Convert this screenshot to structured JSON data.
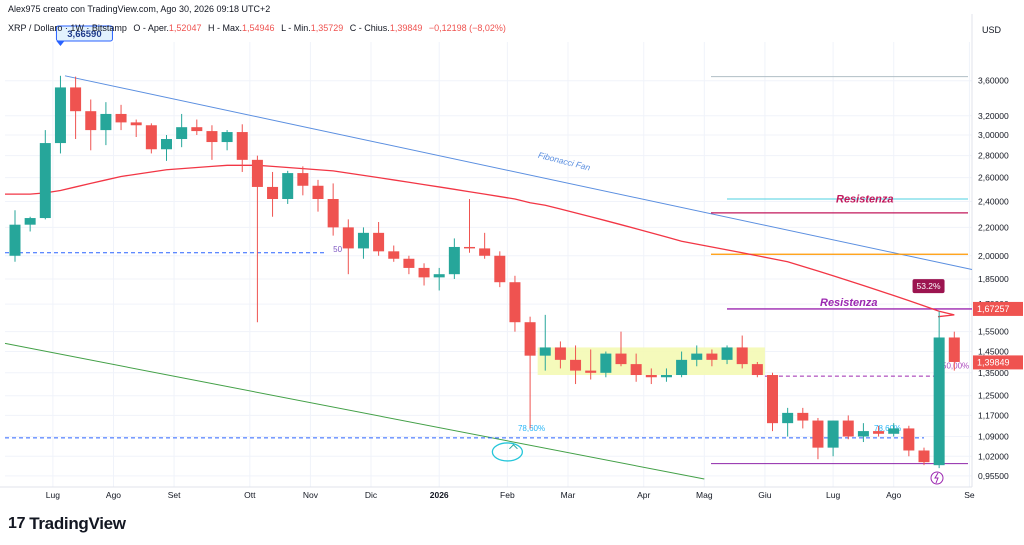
{
  "header": {
    "creator": "Alex975 creato con TradingView.com, Ago 30, 2026 09:18 UTC+2",
    "symbol_line": "XRP / Dollaro · 1W · Bitstamp",
    "ohlc": {
      "open_label": "O - Aper.",
      "open": "1,52047",
      "high_label": "H - Max.",
      "high": "1,54946",
      "low_label": "L - Min.",
      "low": "1,35729",
      "close_label": "C - Chius.",
      "close": "1,39849",
      "change": "−0,12198 (−8,02%)"
    },
    "currency": "USD"
  },
  "brand": {
    "name": "TradingView",
    "logo": "17"
  },
  "colors": {
    "up": "#26a69a",
    "down": "#ef5350",
    "ma": "#f23645",
    "fan_blue": "#5b8fe0",
    "fan_green": "#43a047",
    "dashed_blue": "#2962ff",
    "resist_red": "#c2185b",
    "resist_purple": "#9c27b0",
    "orange": "#ff9800",
    "zone": "#f4f9b4",
    "cyan": "#4dd0e1",
    "grid": "#f0f3fa"
  },
  "chart_data": {
    "type": "candlestick",
    "timeframe": "1W",
    "x_tick_labels": [
      "Lug",
      "Ago",
      "Set",
      "Ott",
      "Nov",
      "Dic",
      "2026",
      "Feb",
      "Mar",
      "Apr",
      "Mag",
      "Giu",
      "Lug",
      "Ago",
      "Se"
    ],
    "y_tick_labels": [
      "3,60000",
      "3,20000",
      "3,00000",
      "2,80000",
      "2,60000",
      "2,40000",
      "2,20000",
      "2,00000",
      "1,85000",
      "1,70000",
      "1,55000",
      "1,45000",
      "1,35000",
      "1,25000",
      "1,17000",
      "1,09000",
      "1,02000",
      "0,95500"
    ],
    "y_scale": "log",
    "y_range": [
      0.92,
      4.1
    ],
    "candles": [
      {
        "o": 2.0,
        "h": 2.33,
        "l": 1.96,
        "c": 2.22
      },
      {
        "o": 2.22,
        "h": 2.28,
        "l": 2.17,
        "c": 2.27
      },
      {
        "o": 2.27,
        "h": 3.05,
        "l": 2.26,
        "c": 2.92
      },
      {
        "o": 2.92,
        "h": 3.66,
        "l": 2.82,
        "c": 3.52
      },
      {
        "o": 3.52,
        "h": 3.65,
        "l": 2.96,
        "c": 3.25
      },
      {
        "o": 3.25,
        "h": 3.38,
        "l": 2.85,
        "c": 3.05
      },
      {
        "o": 3.05,
        "h": 3.35,
        "l": 2.9,
        "c": 3.22
      },
      {
        "o": 3.22,
        "h": 3.32,
        "l": 3.05,
        "c": 3.13
      },
      {
        "o": 3.13,
        "h": 3.16,
        "l": 2.98,
        "c": 3.1
      },
      {
        "o": 3.1,
        "h": 3.12,
        "l": 2.82,
        "c": 2.86
      },
      {
        "o": 2.86,
        "h": 3.0,
        "l": 2.75,
        "c": 2.96
      },
      {
        "o": 2.96,
        "h": 3.22,
        "l": 2.88,
        "c": 3.08
      },
      {
        "o": 3.08,
        "h": 3.16,
        "l": 3.0,
        "c": 3.04
      },
      {
        "o": 3.04,
        "h": 3.1,
        "l": 2.76,
        "c": 2.93
      },
      {
        "o": 2.93,
        "h": 3.05,
        "l": 2.85,
        "c": 3.03
      },
      {
        "o": 3.03,
        "h": 3.11,
        "l": 2.65,
        "c": 2.76
      },
      {
        "o": 2.76,
        "h": 2.8,
        "l": 1.6,
        "c": 2.52
      },
      {
        "o": 2.52,
        "h": 2.65,
        "l": 2.28,
        "c": 2.42
      },
      {
        "o": 2.42,
        "h": 2.66,
        "l": 2.38,
        "c": 2.64
      },
      {
        "o": 2.64,
        "h": 2.7,
        "l": 2.45,
        "c": 2.53
      },
      {
        "o": 2.53,
        "h": 2.58,
        "l": 2.32,
        "c": 2.42
      },
      {
        "o": 2.42,
        "h": 2.55,
        "l": 2.14,
        "c": 2.2
      },
      {
        "o": 2.2,
        "h": 2.26,
        "l": 1.88,
        "c": 2.05
      },
      {
        "o": 2.05,
        "h": 2.2,
        "l": 1.98,
        "c": 2.16
      },
      {
        "o": 2.16,
        "h": 2.24,
        "l": 2.0,
        "c": 2.03
      },
      {
        "o": 2.03,
        "h": 2.07,
        "l": 1.96,
        "c": 1.98
      },
      {
        "o": 1.98,
        "h": 2.0,
        "l": 1.88,
        "c": 1.92
      },
      {
        "o": 1.92,
        "h": 1.95,
        "l": 1.81,
        "c": 1.86
      },
      {
        "o": 1.86,
        "h": 1.92,
        "l": 1.78,
        "c": 1.88
      },
      {
        "o": 1.88,
        "h": 2.12,
        "l": 1.85,
        "c": 2.06
      },
      {
        "o": 2.06,
        "h": 2.42,
        "l": 2.02,
        "c": 2.05
      },
      {
        "o": 2.05,
        "h": 2.16,
        "l": 1.98,
        "c": 2.0
      },
      {
        "o": 2.0,
        "h": 2.03,
        "l": 1.8,
        "c": 1.83
      },
      {
        "o": 1.83,
        "h": 1.87,
        "l": 1.55,
        "c": 1.6
      },
      {
        "o": 1.6,
        "h": 1.63,
        "l": 1.12,
        "c": 1.43
      },
      {
        "o": 1.43,
        "h": 1.64,
        "l": 1.36,
        "c": 1.47
      },
      {
        "o": 1.47,
        "h": 1.5,
        "l": 1.37,
        "c": 1.41
      },
      {
        "o": 1.41,
        "h": 1.48,
        "l": 1.3,
        "c": 1.36
      },
      {
        "o": 1.36,
        "h": 1.46,
        "l": 1.32,
        "c": 1.35
      },
      {
        "o": 1.35,
        "h": 1.45,
        "l": 1.33,
        "c": 1.44
      },
      {
        "o": 1.44,
        "h": 1.55,
        "l": 1.38,
        "c": 1.39
      },
      {
        "o": 1.39,
        "h": 1.44,
        "l": 1.31,
        "c": 1.34
      },
      {
        "o": 1.34,
        "h": 1.37,
        "l": 1.3,
        "c": 1.33
      },
      {
        "o": 1.33,
        "h": 1.37,
        "l": 1.31,
        "c": 1.34
      },
      {
        "o": 1.34,
        "h": 1.45,
        "l": 1.33,
        "c": 1.41
      },
      {
        "o": 1.41,
        "h": 1.48,
        "l": 1.38,
        "c": 1.44
      },
      {
        "o": 1.44,
        "h": 1.46,
        "l": 1.38,
        "c": 1.41
      },
      {
        "o": 1.41,
        "h": 1.48,
        "l": 1.39,
        "c": 1.47
      },
      {
        "o": 1.47,
        "h": 1.53,
        "l": 1.37,
        "c": 1.39
      },
      {
        "o": 1.39,
        "h": 1.4,
        "l": 1.33,
        "c": 1.34
      },
      {
        "o": 1.34,
        "h": 1.35,
        "l": 1.11,
        "c": 1.14
      },
      {
        "o": 1.14,
        "h": 1.2,
        "l": 1.09,
        "c": 1.18
      },
      {
        "o": 1.18,
        "h": 1.2,
        "l": 1.12,
        "c": 1.15
      },
      {
        "o": 1.15,
        "h": 1.16,
        "l": 1.01,
        "c": 1.05
      },
      {
        "o": 1.05,
        "h": 1.15,
        "l": 1.02,
        "c": 1.15
      },
      {
        "o": 1.15,
        "h": 1.17,
        "l": 1.08,
        "c": 1.09
      },
      {
        "o": 1.09,
        "h": 1.14,
        "l": 1.07,
        "c": 1.11
      },
      {
        "o": 1.11,
        "h": 1.13,
        "l": 1.09,
        "c": 1.1
      },
      {
        "o": 1.1,
        "h": 1.14,
        "l": 1.09,
        "c": 1.12
      },
      {
        "o": 1.12,
        "h": 1.13,
        "l": 1.02,
        "c": 1.04
      },
      {
        "o": 1.04,
        "h": 1.05,
        "l": 0.99,
        "c": 1.0
      },
      {
        "o": 0.99,
        "h": 1.66,
        "l": 0.98,
        "c": 1.52
      },
      {
        "o": 1.52,
        "h": 1.55,
        "l": 1.36,
        "c": 1.4
      }
    ],
    "moving_average": [
      2.46,
      2.46,
      2.47,
      2.49,
      2.52,
      2.55,
      2.58,
      2.61,
      2.63,
      2.65,
      2.67,
      2.68,
      2.69,
      2.7,
      2.71,
      2.71,
      2.71,
      2.7,
      2.69,
      2.68,
      2.67,
      2.66,
      2.64,
      2.62,
      2.6,
      2.58,
      2.56,
      2.54,
      2.52,
      2.5,
      2.48,
      2.46,
      2.44,
      2.42,
      2.39,
      2.37,
      2.34,
      2.31,
      2.28,
      2.25,
      2.22,
      2.19,
      2.16,
      2.13,
      2.1,
      2.08,
      2.06,
      2.04,
      2.02,
      2.0,
      1.98,
      1.96,
      1.93,
      1.9,
      1.87,
      1.84,
      1.81,
      1.78,
      1.75,
      1.72,
      1.69,
      1.66,
      1.64
    ],
    "price_levels": [
      {
        "label": "Resistenza",
        "value": 2.31
      },
      {
        "label": "Resistenza",
        "value": 1.673
      },
      {
        "label": "",
        "value": 2.01
      },
      {
        "label": "",
        "value": 3.65
      },
      {
        "label": "",
        "value": 2.42
      },
      {
        "label": "",
        "value": 0.995
      }
    ],
    "annotations": {
      "high_badge": "3,66590",
      "fib_fan_label": "Fibonacci Fan",
      "fib_7860_a": "78,60%",
      "fib_7860_b": "78,60%",
      "fib_50": "50,00%",
      "pct_badge": "53.2%",
      "price_label_resistance": "1,67257",
      "price_label_last": "1,39849",
      "fib_prefix": "50",
      "zone_range": [
        1.34,
        1.47
      ]
    }
  }
}
